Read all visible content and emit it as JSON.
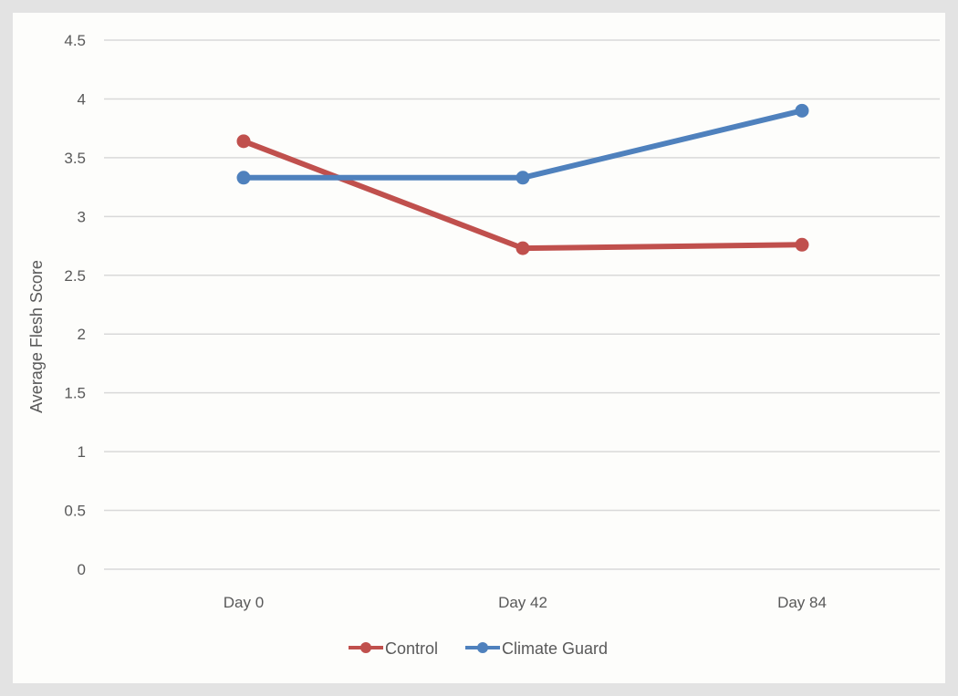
{
  "chart_data": {
    "type": "line",
    "categories": [
      "Day 0",
      "Day 42",
      "Day 84"
    ],
    "series": [
      {
        "name": "Control",
        "values": [
          3.64,
          2.73,
          2.76
        ],
        "color": "#c0504d"
      },
      {
        "name": "Climate Guard",
        "values": [
          3.33,
          3.33,
          3.9
        ],
        "color": "#4f81bd"
      }
    ],
    "ylabel": "Average Flesh Score",
    "xlabel": "",
    "ylim": [
      0,
      4.5
    ],
    "yticks": [
      "0",
      "0.5",
      "1",
      "1.5",
      "2",
      "2.5",
      "3",
      "3.5",
      "4",
      "4.5"
    ],
    "grid": true,
    "legend_position": "bottom"
  }
}
